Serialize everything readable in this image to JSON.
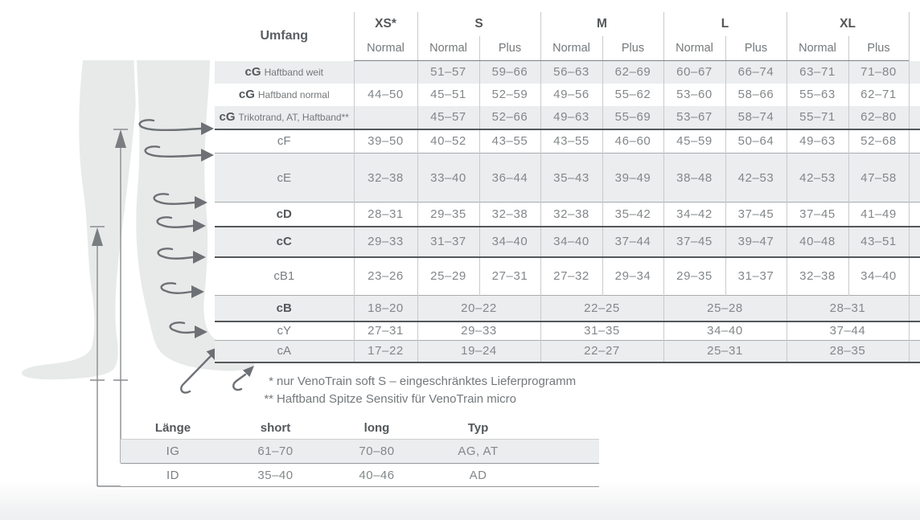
{
  "chart_data": [
    {
      "type": "table",
      "corner_label": "Umfang",
      "column_groups": [
        {
          "label": "XS*",
          "subcolumns": [
            "Normal"
          ]
        },
        {
          "label": "S",
          "subcolumns": [
            "Normal",
            "Plus"
          ]
        },
        {
          "label": "M",
          "subcolumns": [
            "Normal",
            "Plus"
          ]
        },
        {
          "label": "L",
          "subcolumns": [
            "Normal",
            "Plus"
          ]
        },
        {
          "label": "XL",
          "subcolumns": [
            "Normal",
            "Plus"
          ]
        }
      ],
      "rows": [
        {
          "circumference": "cG",
          "label_detail": "Haftband weit",
          "emphasis": false,
          "merged": false,
          "rule": "none",
          "values": [
            "",
            "51–57",
            "59–66",
            "56–63",
            "62–69",
            "60–67",
            "66–74",
            "63–71",
            "71–80"
          ]
        },
        {
          "circumference": "cG",
          "label_detail": "Haftband normal",
          "emphasis": false,
          "merged": false,
          "rule": "none",
          "values": [
            "44–50",
            "45–51",
            "52–59",
            "49–56",
            "55–62",
            "53–60",
            "58–66",
            "55–63",
            "62–71"
          ]
        },
        {
          "circumference": "cG",
          "label_detail": "Trikotrand, AT, Haftband**",
          "emphasis": false,
          "merged": false,
          "rule": "heavy",
          "values": [
            "",
            "45–57",
            "52–66",
            "49–63",
            "55–69",
            "53–67",
            "58–74",
            "55–71",
            "62–80"
          ]
        },
        {
          "circumference": "cF",
          "label_detail": "",
          "emphasis": false,
          "merged": false,
          "rule": "light",
          "values": [
            "39–50",
            "40–52",
            "43–55",
            "43–55",
            "46–60",
            "45–59",
            "50–64",
            "49–63",
            "52–68"
          ]
        },
        {
          "circumference": "cE",
          "label_detail": "",
          "emphasis": false,
          "merged": false,
          "rule": "light",
          "values": [
            "32–38",
            "33–40",
            "36–44",
            "35–43",
            "39–49",
            "38–48",
            "42–53",
            "42–53",
            "47–58"
          ]
        },
        {
          "circumference": "cD",
          "label_detail": "",
          "emphasis": true,
          "merged": false,
          "rule": "heavy",
          "values": [
            "28–31",
            "29–35",
            "32–38",
            "32–38",
            "35–42",
            "34–42",
            "37–45",
            "37–45",
            "41–49"
          ]
        },
        {
          "circumference": "cC",
          "label_detail": "",
          "emphasis": true,
          "merged": false,
          "rule": "heavy",
          "values": [
            "29–33",
            "31–37",
            "34–40",
            "34–40",
            "37–44",
            "37–45",
            "39–47",
            "40–48",
            "43–51"
          ]
        },
        {
          "circumference": "cB1",
          "label_detail": "",
          "emphasis": false,
          "merged": false,
          "rule": "light",
          "values": [
            "23–26",
            "25–29",
            "27–31",
            "27–32",
            "29–34",
            "29–35",
            "31–37",
            "32–38",
            "34–40"
          ]
        },
        {
          "circumference": "cB",
          "label_detail": "",
          "emphasis": true,
          "merged": true,
          "rule": "heavy",
          "values": [
            "18–20",
            "20–22",
            "22–25",
            "25–28",
            "28–31"
          ]
        },
        {
          "circumference": "cY",
          "label_detail": "",
          "emphasis": false,
          "merged": true,
          "rule": "light",
          "values": [
            "27–31",
            "29–33",
            "31–35",
            "34–40",
            "37–44"
          ]
        },
        {
          "circumference": "cA",
          "label_detail": "",
          "emphasis": false,
          "merged": true,
          "rule": "heavy",
          "values": [
            "17–22",
            "19–24",
            "22–27",
            "25–31",
            "28–35"
          ]
        }
      ]
    },
    {
      "type": "table",
      "columns": [
        "Länge",
        "short",
        "long",
        "Typ"
      ],
      "rows": [
        [
          "IG",
          "61–70",
          "70–80",
          "AG, AT"
        ],
        [
          "ID",
          "35–40",
          "40–46",
          "AD"
        ]
      ]
    }
  ],
  "footnotes": [
    {
      "mark": "*",
      "text": "nur VenoTrain soft S – eingeschränktes Lieferprogramm"
    },
    {
      "mark": "**",
      "text": "Haftband Spitze Sensitiv für VenoTrain micro"
    }
  ],
  "diagram": {
    "icons": [
      "leg-silhouette",
      "circumference-loop-arrow",
      "foot-measure-arrow",
      "length-measure-line-ig",
      "length-measure-line-id"
    ],
    "colors": {
      "stripe": "#ebedee",
      "leg_fill": "#e8eaea",
      "arrow": "#6d7175",
      "heavy_rule": "#54575a",
      "text": "#83878a",
      "bold_text": "#54585b"
    }
  }
}
